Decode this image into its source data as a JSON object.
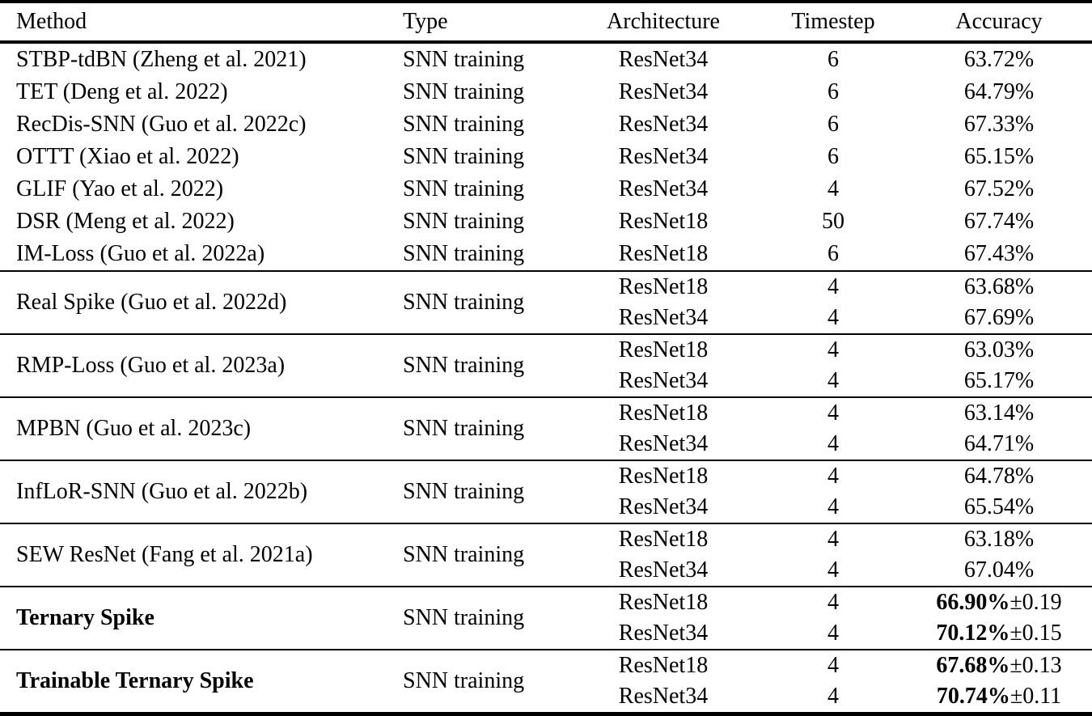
{
  "colors": {
    "text": "#000000",
    "background": "#ffffff",
    "rule": "#000000"
  },
  "table": {
    "header": {
      "method": "Method",
      "type": "Type",
      "architecture": "Architecture",
      "timestep": "Timestep",
      "accuracy": "Accuracy"
    },
    "sections": [
      {
        "method": "STBP-tdBN (Zheng et al. 2021)",
        "type": "SNN training",
        "rows": [
          {
            "arch": "ResNet34",
            "timestep": "6",
            "acc": "63.72%",
            "pm": ""
          }
        ]
      },
      {
        "method": "TET (Deng et al. 2022)",
        "type": "SNN training",
        "rows": [
          {
            "arch": "ResNet34",
            "timestep": "6",
            "acc": "64.79%",
            "pm": ""
          }
        ]
      },
      {
        "method": "RecDis-SNN (Guo et al. 2022c)",
        "type": "SNN training",
        "rows": [
          {
            "arch": "ResNet34",
            "timestep": "6",
            "acc": "67.33%",
            "pm": ""
          }
        ]
      },
      {
        "method": "OTTT (Xiao et al. 2022)",
        "type": "SNN training",
        "rows": [
          {
            "arch": "ResNet34",
            "timestep": "6",
            "acc": "65.15%",
            "pm": ""
          }
        ]
      },
      {
        "method": "GLIF (Yao et al. 2022)",
        "type": "SNN training",
        "rows": [
          {
            "arch": "ResNet34",
            "timestep": "4",
            "acc": "67.52%",
            "pm": ""
          }
        ]
      },
      {
        "method": "DSR (Meng et al. 2022)",
        "type": "SNN training",
        "rows": [
          {
            "arch": "ResNet18",
            "timestep": "50",
            "acc": "67.74%",
            "pm": ""
          }
        ]
      },
      {
        "method": "IM-Loss (Guo et al. 2022a)",
        "type": "SNN training",
        "rows": [
          {
            "arch": "ResNet18",
            "timestep": "6",
            "acc": "67.43%",
            "pm": ""
          }
        ]
      },
      {
        "method": "Real Spike (Guo et al. 2022d)",
        "type": "SNN training",
        "rows": [
          {
            "arch": "ResNet18",
            "timestep": "4",
            "acc": "63.68%",
            "pm": ""
          },
          {
            "arch": "ResNet34",
            "timestep": "4",
            "acc": "67.69%",
            "pm": ""
          }
        ]
      },
      {
        "method": "RMP-Loss (Guo et al. 2023a)",
        "type": "SNN training",
        "rows": [
          {
            "arch": "ResNet18",
            "timestep": "4",
            "acc": "63.03%",
            "pm": ""
          },
          {
            "arch": "ResNet34",
            "timestep": "4",
            "acc": "65.17%",
            "pm": ""
          }
        ]
      },
      {
        "method": "MPBN (Guo et al. 2023c)",
        "type": "SNN training",
        "rows": [
          {
            "arch": "ResNet18",
            "timestep": "4",
            "acc": "63.14%",
            "pm": ""
          },
          {
            "arch": "ResNet34",
            "timestep": "4",
            "acc": "64.71%",
            "pm": ""
          }
        ]
      },
      {
        "method": "InfLoR-SNN (Guo et al. 2022b)",
        "type": "SNN training",
        "rows": [
          {
            "arch": "ResNet18",
            "timestep": "4",
            "acc": "64.78%",
            "pm": ""
          },
          {
            "arch": "ResNet34",
            "timestep": "4",
            "acc": "65.54%",
            "pm": ""
          }
        ]
      },
      {
        "method": "SEW ResNet (Fang et al. 2021a)",
        "type": "SNN training",
        "rows": [
          {
            "arch": "ResNet18",
            "timestep": "4",
            "acc": "63.18%",
            "pm": ""
          },
          {
            "arch": "ResNet34",
            "timestep": "4",
            "acc": "67.04%",
            "pm": ""
          }
        ]
      },
      {
        "method": "Ternary Spike",
        "type": "SNN training",
        "bold": true,
        "rows": [
          {
            "arch": "ResNet18",
            "timestep": "4",
            "acc": "66.90%",
            "pm": "±0.19"
          },
          {
            "arch": "ResNet34",
            "timestep": "4",
            "acc": "70.12%",
            "pm": "±0.15"
          }
        ]
      },
      {
        "method": "Trainable Ternary Spike",
        "type": "SNN training",
        "bold": true,
        "rows": [
          {
            "arch": "ResNet18",
            "timestep": "4",
            "acc": "67.68%",
            "pm": "±0.13"
          },
          {
            "arch": "ResNet34",
            "timestep": "4",
            "acc": "70.74%",
            "pm": "±0.11"
          }
        ]
      }
    ]
  }
}
